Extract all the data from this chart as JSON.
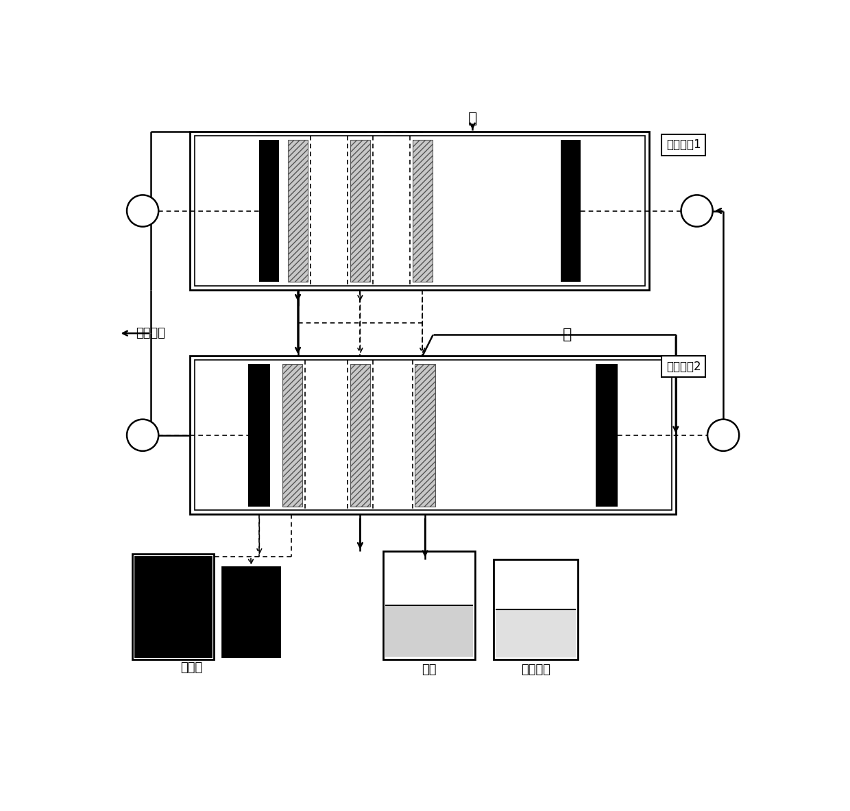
{
  "bg_color": "#ffffff",
  "line_color": "#000000",
  "label_device1": "滲析设备1",
  "label_device2": "滲析设备2",
  "label_water_top": "水",
  "label_water_mid": "水",
  "label_ferment": "发酵溶液",
  "label_electrolyte": "电解液",
  "label_lactic": "乳酸",
  "label_naoh": "氮氧化销",
  "font_size_label": 13,
  "font_size_box": 12
}
